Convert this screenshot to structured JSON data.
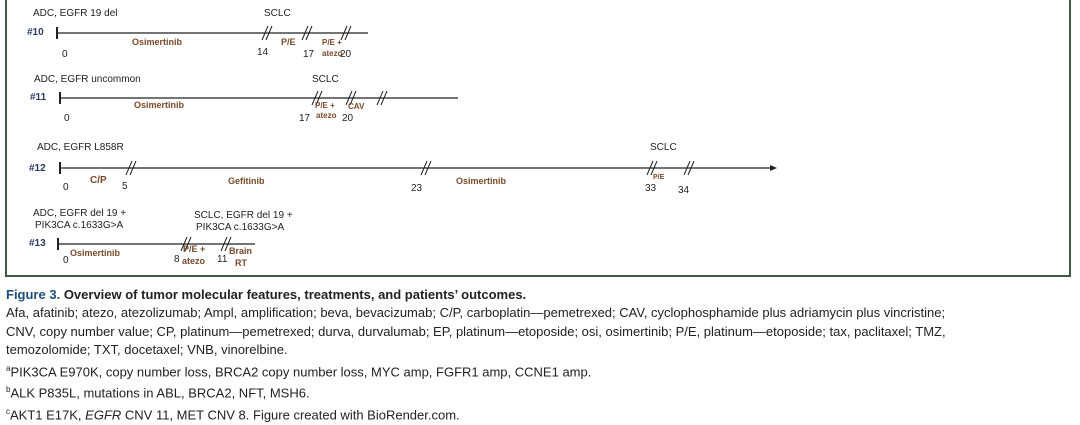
{
  "patients": [
    {
      "id": "#10",
      "initial": "ADC, EGFR 19 del",
      "transform": "SCLC",
      "treatments": [
        "Osimertinib",
        "P/E",
        "P/E +",
        "atezo"
      ],
      "ticks": [
        "0",
        "14",
        "17",
        "20"
      ]
    },
    {
      "id": "#11",
      "initial": "ADC, EGFR uncommon",
      "transform": "SCLC",
      "treatments": [
        "Osimertinib",
        "P/E +",
        "atezo",
        "CAV"
      ],
      "ticks": [
        "0",
        "17",
        "20"
      ]
    },
    {
      "id": "#12",
      "initial": "ADC, EGFR L858R",
      "transform": "SCLC",
      "treatments": [
        "C/P",
        "Gefitinib",
        "Osimertinib",
        "P/E"
      ],
      "ticks": [
        "0",
        "5",
        "23",
        "33",
        "34"
      ]
    },
    {
      "id": "#13",
      "initial": [
        "ADC, EGFR del 19 +",
        "PIK3CA c.1633G>A"
      ],
      "transform": [
        "SCLC, EGFR del 19 +",
        "PIK3CA c.1633G>A"
      ],
      "treatments": [
        "Osimertinib",
        "P/E +",
        "atezo",
        "Brain",
        "RT"
      ],
      "ticks": [
        "0",
        "8",
        "11"
      ]
    }
  ],
  "caption": {
    "title": "Figure 3.",
    "title_text": "Overview of tumor molecular features, treatments, and patients’ outcomes.",
    "lines": [
      "Afa, afatinib; atezo, atezolizumab; Ampl, amplification; beva, bevacizumab; C/P, carboplatin—pemetrexed; CAV, cyclophosphamide plus adriamycin plus vincristine;",
      "CNV, copy number value; CP, platinum—pemetrexed; durva, durvalumab; EP, platinum—etoposide; osi, osimertinib; P/E, platinum—etoposide; tax, paclitaxel; TMZ,",
      "temozolomide; TXT, docetaxel; VNB, vinorelbine."
    ],
    "notes": [
      {
        "mark": "a",
        "text": "PIK3CA E970K, copy number loss, BRCA2 copy number loss, MYC amp, FGFR1 amp, CCNE1 amp."
      },
      {
        "mark": "b",
        "text": "ALK P835L, mutations in ABL, BRCA2, NFT, MSH6."
      },
      {
        "mark": "c",
        "pre": "AKT1 E17K, ",
        "italic": "EGFR",
        "post": " CNV 11, MET CNV 8. Figure created with BioRender.com."
      }
    ]
  },
  "colors": {
    "treatment": "#7a4a2a",
    "patient_id": "#2b3a63",
    "frame": "#3d5a45"
  }
}
